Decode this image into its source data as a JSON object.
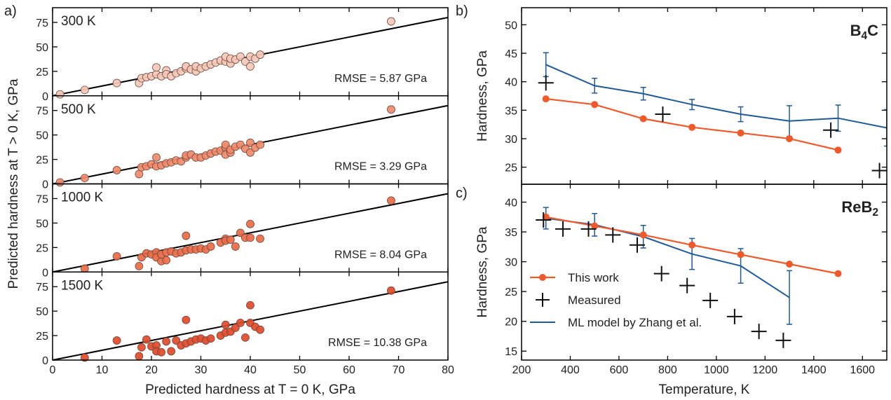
{
  "figure": {
    "panel_labels": [
      "a)",
      "b)",
      "c)"
    ]
  },
  "chart_data": [
    {
      "type": "scatter",
      "panel": "a",
      "xlabel": "Predicted hardness at T = 0 K, GPa",
      "ylabel": "Predicted hardness at T > 0 K, GPa",
      "xlim": [
        0,
        80
      ],
      "ylim": [
        0,
        90
      ],
      "xticks": [
        0,
        10,
        20,
        30,
        40,
        50,
        60,
        70,
        80
      ],
      "yticks": [
        0,
        25,
        50,
        75
      ],
      "reference_line": {
        "slope": 1,
        "intercept": 0
      },
      "subplots": [
        {
          "label": "300 K",
          "rmse_text": "RMSE = 5.87 GPa",
          "color": "#f9c9b8",
          "points": [
            [
              1.5,
              1.5
            ],
            [
              6.5,
              6
            ],
            [
              13,
              13
            ],
            [
              17.5,
              13
            ],
            [
              18,
              18
            ],
            [
              19,
              19
            ],
            [
              20,
              20
            ],
            [
              21,
              22
            ],
            [
              21,
              29
            ],
            [
              22,
              20
            ],
            [
              23,
              26
            ],
            [
              23,
              22
            ],
            [
              24,
              20
            ],
            [
              25,
              23
            ],
            [
              26,
              25
            ],
            [
              27,
              28
            ],
            [
              27,
              30
            ],
            [
              28,
              27
            ],
            [
              29,
              25
            ],
            [
              29,
              30
            ],
            [
              30,
              28
            ],
            [
              31,
              30
            ],
            [
              32,
              32
            ],
            [
              33,
              34
            ],
            [
              34,
              36
            ],
            [
              35,
              35
            ],
            [
              35,
              40
            ],
            [
              36,
              33
            ],
            [
              36,
              38
            ],
            [
              37,
              37
            ],
            [
              38,
              40
            ],
            [
              39,
              35
            ],
            [
              40,
              30
            ],
            [
              40,
              40
            ],
            [
              41,
              38
            ],
            [
              42,
              42
            ],
            [
              68.5,
              76
            ]
          ]
        },
        {
          "label": "500 K",
          "rmse_text": "RMSE = 3.29 GPa",
          "color": "#f28a6a",
          "points": [
            [
              1.5,
              1.5
            ],
            [
              6.5,
              6
            ],
            [
              13,
              14
            ],
            [
              17.5,
              10
            ],
            [
              18,
              17
            ],
            [
              19,
              18
            ],
            [
              20,
              20
            ],
            [
              21,
              27
            ],
            [
              21,
              18
            ],
            [
              22,
              19
            ],
            [
              23,
              21
            ],
            [
              24,
              22
            ],
            [
              25,
              24
            ],
            [
              26,
              23
            ],
            [
              27,
              27
            ],
            [
              27,
              29
            ],
            [
              28,
              30
            ],
            [
              29,
              27
            ],
            [
              30,
              27
            ],
            [
              31,
              29
            ],
            [
              32,
              31
            ],
            [
              33,
              33
            ],
            [
              34,
              34
            ],
            [
              35,
              37
            ],
            [
              35,
              30
            ],
            [
              35,
              40
            ],
            [
              36,
              32
            ],
            [
              36,
              35
            ],
            [
              37,
              38
            ],
            [
              38,
              40
            ],
            [
              39,
              36
            ],
            [
              40,
              32
            ],
            [
              40,
              42
            ],
            [
              41,
              37
            ],
            [
              42,
              40
            ],
            [
              68.5,
              76
            ]
          ]
        },
        {
          "label": "1000 K",
          "rmse_text": "RMSE = 8.04 GPa",
          "color": "#ec6a46",
          "points": [
            [
              6.5,
              3.5
            ],
            [
              13,
              16
            ],
            [
              17.5,
              6
            ],
            [
              18,
              15
            ],
            [
              19,
              19
            ],
            [
              20,
              18
            ],
            [
              21,
              20
            ],
            [
              21,
              15
            ],
            [
              22,
              11
            ],
            [
              22,
              18
            ],
            [
              23,
              12
            ],
            [
              23,
              20
            ],
            [
              24,
              21
            ],
            [
              25,
              19
            ],
            [
              26,
              20
            ],
            [
              27,
              22
            ],
            [
              27,
              37
            ],
            [
              28,
              23
            ],
            [
              29,
              23
            ],
            [
              30,
              24
            ],
            [
              31,
              23
            ],
            [
              32,
              26
            ],
            [
              34,
              30
            ],
            [
              35,
              34
            ],
            [
              35,
              32
            ],
            [
              36,
              33
            ],
            [
              37,
              26
            ],
            [
              38,
              40
            ],
            [
              39,
              35
            ],
            [
              40,
              49
            ],
            [
              40,
              35
            ],
            [
              42,
              34
            ],
            [
              68.5,
              73
            ]
          ]
        },
        {
          "label": "1500 K",
          "rmse_text": "RMSE = 10.38 GPa",
          "color": "#e24a28",
          "points": [
            [
              6.5,
              2.5
            ],
            [
              13,
              20
            ],
            [
              17.5,
              4
            ],
            [
              18,
              13
            ],
            [
              19,
              21
            ],
            [
              20,
              14
            ],
            [
              21,
              15
            ],
            [
              21,
              9
            ],
            [
              22,
              8
            ],
            [
              23,
              19
            ],
            [
              24,
              9
            ],
            [
              25,
              20
            ],
            [
              26,
              15
            ],
            [
              27,
              17
            ],
            [
              27,
              41
            ],
            [
              28,
              19
            ],
            [
              29,
              21
            ],
            [
              30,
              22
            ],
            [
              31,
              20
            ],
            [
              32,
              22
            ],
            [
              34,
              25
            ],
            [
              35,
              28
            ],
            [
              35,
              36
            ],
            [
              36,
              29
            ],
            [
              37,
              33
            ],
            [
              38,
              38
            ],
            [
              39,
              23
            ],
            [
              40,
              56
            ],
            [
              40,
              38
            ],
            [
              41,
              34
            ],
            [
              42,
              31
            ],
            [
              68.5,
              71
            ]
          ]
        }
      ]
    },
    {
      "type": "line",
      "panel": "b",
      "annotation": "B₄C",
      "xlabel": "",
      "ylabel": "Hardness, GPa",
      "xlim": [
        200,
        1700
      ],
      "ylim": [
        22,
        53
      ],
      "xticks": [
        200,
        400,
        600,
        800,
        1000,
        1200,
        1400,
        1600
      ],
      "yticks": [
        25,
        30,
        35,
        40,
        45,
        50
      ],
      "series": [
        {
          "name": "This work",
          "color": "#f05a2a",
          "x": [
            300,
            500,
            700,
            900,
            1100,
            1300,
            1500
          ],
          "y": [
            37,
            36,
            33.5,
            32,
            31,
            30,
            28
          ]
        },
        {
          "name": "Measured",
          "x": [
            300,
            780,
            1470,
            1670
          ],
          "y": [
            39.8,
            34.3,
            31.5,
            24.4
          ]
        },
        {
          "name": "ML model by Zhang et al.",
          "color": "#1f5a99",
          "x": [
            300,
            500,
            700,
            900,
            1100,
            1300,
            1500,
            1700
          ],
          "y": [
            43,
            39.3,
            37.9,
            36,
            34.3,
            33.1,
            33.6,
            31.9
          ],
          "err": [
            2.1,
            1.3,
            1.1,
            0.9,
            1.3,
            2.7,
            2.3,
            3.2
          ]
        }
      ]
    },
    {
      "type": "line",
      "panel": "c",
      "annotation": "ReB₂",
      "xlabel": "Temperature, K",
      "ylabel": "Hardness, GPa",
      "xlim": [
        200,
        1700
      ],
      "ylim": [
        13.5,
        43
      ],
      "xticks": [
        200,
        400,
        600,
        800,
        1000,
        1200,
        1400,
        1600
      ],
      "yticks": [
        15,
        20,
        25,
        30,
        35,
        40
      ],
      "legend": {
        "position": "bottom-left"
      },
      "series": [
        {
          "name": "This work",
          "color": "#f05a2a",
          "x": [
            300,
            500,
            700,
            900,
            1100,
            1300,
            1500
          ],
          "y": [
            37.5,
            36,
            34.5,
            32.8,
            31.2,
            29.6,
            28
          ]
        },
        {
          "name": "Measured",
          "x": [
            290,
            370,
            475,
            575,
            675,
            775,
            880,
            975,
            1075,
            1175,
            1275
          ],
          "y": [
            37,
            35.5,
            35.5,
            34.5,
            32.8,
            28,
            26,
            23.5,
            20.8,
            18.3,
            16.8
          ]
        },
        {
          "name": "ML model by Zhang et al.",
          "color": "#1f5a99",
          "x": [
            300,
            500,
            700,
            900,
            1100,
            1300
          ],
          "y": [
            37.3,
            36.2,
            34.2,
            31.3,
            29.3,
            24
          ],
          "err": [
            1.8,
            1.9,
            1.9,
            2.6,
            2.9,
            4.5
          ]
        }
      ]
    }
  ]
}
